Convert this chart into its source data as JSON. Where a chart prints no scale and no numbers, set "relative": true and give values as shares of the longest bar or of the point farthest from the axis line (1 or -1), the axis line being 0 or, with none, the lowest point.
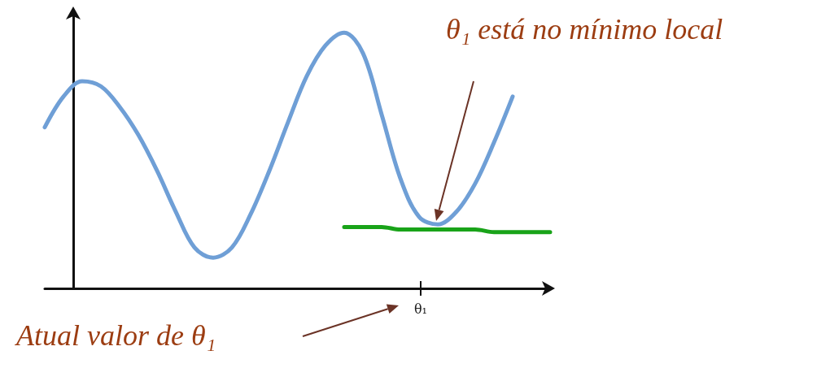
{
  "chart_data": {
    "type": "line",
    "relative": true,
    "marker": "none",
    "grid": false,
    "categories": [
      null,
      null,
      null,
      null,
      null,
      null,
      null,
      null,
      null,
      null,
      null,
      null,
      null,
      null,
      null,
      null,
      null,
      null,
      null,
      null,
      null,
      null,
      null,
      null,
      null,
      null,
      null,
      null
    ],
    "series": [
      {
        "color": "#6f9fd6",
        "values": [
          0.63,
          0.75,
          0.81,
          0.79,
          0.71,
          0.6,
          0.46,
          0.3,
          0.16,
          0.12,
          0.16,
          0.29,
          0.46,
          0.65,
          0.83,
          0.95,
          1,
          0.92,
          0.68,
          0.43,
          0.28,
          0.25,
          0.3,
          0.41,
          0.57,
          0.75,
          null,
          null
        ]
      },
      {
        "color": "#19a319",
        "values": [
          null,
          null,
          null,
          null,
          null,
          null,
          null,
          null,
          null,
          null,
          null,
          null,
          null,
          null,
          null,
          null,
          0.24,
          0.24,
          0.24,
          0.23,
          0.23,
          0.23,
          0.23,
          0.23,
          0.22,
          0.22,
          0.22,
          0.22
        ]
      }
    ],
    "annotations": [
      "θ₁ está no mínimo local",
      "Atual valor de θ₁",
      "θ₁"
    ]
  }
}
